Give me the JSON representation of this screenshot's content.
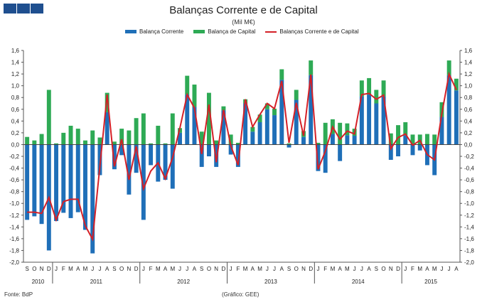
{
  "header": {
    "title": "Balanças Corrente e de Capital",
    "subtitle": "(Mil M€)"
  },
  "footer": {
    "source": "Fonte: BdP",
    "credit": "(Gráfico: GEE)"
  },
  "colors": {
    "current": "#1f6fb8",
    "capital": "#2eaa55",
    "combined": "#d42027",
    "corner": "#1f4f8f"
  },
  "chart_data": {
    "type": "bar",
    "title": "Balanças Corrente e de Capital",
    "subtitle": "(Mil M€)",
    "ylim": [
      -2.0,
      1.6
    ],
    "ytick_step": 0.2,
    "grid": false,
    "legend_position": "top",
    "months": [
      "S",
      "O",
      "N",
      "D",
      "J",
      "F",
      "M",
      "A",
      "M",
      "J",
      "J",
      "A",
      "S",
      "O",
      "N",
      "D",
      "J",
      "F",
      "M",
      "A",
      "M",
      "J",
      "J",
      "A",
      "S",
      "O",
      "N",
      "D",
      "J",
      "F",
      "M",
      "A",
      "M",
      "J",
      "J",
      "A",
      "S",
      "O",
      "N",
      "D",
      "J",
      "F",
      "M",
      "A",
      "M",
      "J",
      "J",
      "A",
      "S",
      "O",
      "N",
      "D",
      "J",
      "F",
      "M",
      "A",
      "M",
      "J",
      "J",
      "A"
    ],
    "years": [
      {
        "label": "2010",
        "start": 0,
        "end": 3
      },
      {
        "label": "2011",
        "start": 4,
        "end": 15
      },
      {
        "label": "2012",
        "start": 16,
        "end": 27
      },
      {
        "label": "2013",
        "start": 28,
        "end": 39
      },
      {
        "label": "2014",
        "start": 40,
        "end": 51
      },
      {
        "label": "2015",
        "start": 52,
        "end": 59
      }
    ],
    "series": [
      {
        "name": "Balança Corrente",
        "type": "bar",
        "values": [
          -1.28,
          -1.22,
          -1.35,
          -1.8,
          -1.3,
          -1.16,
          -1.25,
          -1.15,
          -1.45,
          -1.85,
          -0.52,
          0.55,
          -0.42,
          -0.18,
          -0.85,
          -0.48,
          -1.28,
          -0.35,
          -0.63,
          -0.6,
          -0.75,
          0.2,
          0.85,
          0.64,
          -0.38,
          -0.2,
          -0.38,
          0.58,
          -0.17,
          -0.38,
          0.7,
          0.22,
          0.38,
          0.6,
          0.5,
          1.1,
          -0.05,
          0.76,
          0.13,
          1.18,
          -0.45,
          -0.48,
          0.18,
          -0.28,
          0.16,
          0.15,
          0.82,
          0.85,
          0.7,
          0.82,
          -0.26,
          -0.2,
          0.16,
          -0.18,
          -0.1,
          -0.35,
          -0.52,
          0.47,
          1.18,
          0.92
        ]
      },
      {
        "name": "Balança de Capital",
        "type": "bar",
        "values": [
          0.13,
          0.07,
          0.18,
          0.93,
          0.02,
          0.2,
          0.32,
          0.27,
          0.07,
          0.24,
          0.12,
          0.33,
          0.05,
          0.27,
          0.24,
          0.45,
          0.53,
          0.02,
          0.32,
          0.02,
          0.53,
          0.08,
          0.32,
          0.38,
          0.22,
          0.88,
          0.07,
          0.07,
          0.17,
          0.03,
          0.07,
          0.08,
          0.13,
          0.1,
          0.11,
          0.18,
          0.02,
          0.17,
          0.1,
          0.25,
          0.03,
          0.37,
          0.25,
          0.37,
          0.2,
          0.12,
          0.27,
          0.28,
          0.23,
          0.27,
          0.19,
          0.33,
          0.22,
          0.17,
          0.17,
          0.18,
          0.17,
          0.25,
          0.25,
          0.2
        ]
      },
      {
        "name": "Balanças Corrente e de Capital",
        "type": "line",
        "values": [
          -1.15,
          -1.15,
          -1.17,
          -0.9,
          -1.28,
          -0.97,
          -0.93,
          -0.93,
          -1.38,
          -1.61,
          -0.38,
          0.85,
          -0.37,
          0.09,
          -0.6,
          -0.03,
          -0.75,
          -0.45,
          -0.31,
          -0.58,
          -0.22,
          0.28,
          0.85,
          0.62,
          -0.16,
          0.68,
          -0.3,
          0.59,
          -0.02,
          -0.35,
          0.77,
          0.3,
          0.51,
          0.7,
          0.61,
          1.08,
          0.03,
          0.71,
          0.15,
          1.19,
          -0.42,
          -0.11,
          0.3,
          0.09,
          0.23,
          0.18,
          0.85,
          0.87,
          0.77,
          0.84,
          -0.07,
          0.12,
          0.18,
          -0.01,
          0.07,
          -0.17,
          -0.26,
          0.52,
          1.2,
          0.93
        ]
      }
    ]
  }
}
